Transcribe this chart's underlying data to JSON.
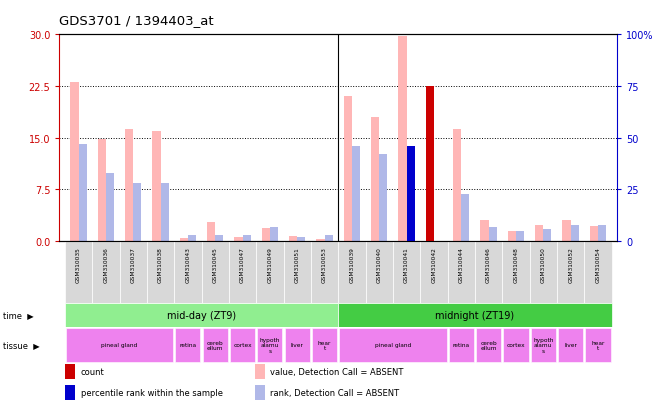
{
  "title": "GDS3701 / 1394403_at",
  "samples": [
    "GSM310035",
    "GSM310036",
    "GSM310037",
    "GSM310038",
    "GSM310043",
    "GSM310045",
    "GSM310047",
    "GSM310049",
    "GSM310051",
    "GSM310053",
    "GSM310039",
    "GSM310040",
    "GSM310041",
    "GSM310042",
    "GSM310044",
    "GSM310046",
    "GSM310048",
    "GSM310050",
    "GSM310052",
    "GSM310054"
  ],
  "value_absent": [
    23.0,
    14.8,
    16.2,
    16.0,
    0.5,
    2.8,
    0.6,
    1.9,
    0.8,
    0.3,
    21.0,
    18.0,
    29.8,
    0.0,
    16.2,
    3.0,
    1.5,
    2.4,
    3.0,
    2.2
  ],
  "rank_absent_pct": [
    47.0,
    33.0,
    28.0,
    28.0,
    3.0,
    3.0,
    3.0,
    7.0,
    2.0,
    3.0,
    46.0,
    42.0,
    0.0,
    0.0,
    23.0,
    7.0,
    5.0,
    6.0,
    8.0,
    8.0
  ],
  "count_value": [
    0,
    0,
    0,
    0,
    0,
    0,
    0,
    0,
    0,
    0,
    0,
    0,
    0,
    22.5,
    0,
    0,
    0,
    0,
    0,
    0
  ],
  "rank_count_pct": [
    0,
    0,
    0,
    0,
    0,
    0,
    0,
    0,
    0,
    0,
    0,
    0,
    46.0,
    0,
    0,
    0,
    0,
    0,
    0,
    0
  ],
  "ylim_left": [
    0,
    30
  ],
  "ylim_right": [
    0,
    100
  ],
  "yticks_left": [
    0,
    7.5,
    15,
    22.5,
    30
  ],
  "yticks_right": [
    0,
    25,
    50,
    75,
    100
  ],
  "bar_width": 0.3,
  "color_value_absent": "#ffb6b6",
  "color_rank_absent": "#b0b8e8",
  "color_count": "#cc0000",
  "color_rank_count": "#0000cc",
  "axis_left_color": "#cc0000",
  "axis_right_color": "#0000cc",
  "time_groups": [
    {
      "label": "mid-day (ZT9)",
      "start": 0,
      "end": 10,
      "color": "#90ee90"
    },
    {
      "label": "midnight (ZT19)",
      "start": 10,
      "end": 20,
      "color": "#44cc44"
    }
  ],
  "tissue_defs": [
    [
      0,
      4,
      "pineal gland"
    ],
    [
      4,
      5,
      "retina"
    ],
    [
      5,
      6,
      "cereb\nellum"
    ],
    [
      6,
      7,
      "cortex"
    ],
    [
      7,
      8,
      "hypoth\nalamu\ns"
    ],
    [
      8,
      9,
      "liver"
    ],
    [
      9,
      10,
      "hear\nt"
    ],
    [
      10,
      14,
      "pineal gland"
    ],
    [
      14,
      15,
      "retina"
    ],
    [
      15,
      16,
      "cereb\nellum"
    ],
    [
      16,
      17,
      "cortex"
    ],
    [
      17,
      18,
      "hypoth\nalamu\ns"
    ],
    [
      18,
      19,
      "liver"
    ],
    [
      19,
      20,
      "hear\nt"
    ]
  ],
  "legend_items": [
    {
      "label": "count",
      "color": "#cc0000"
    },
    {
      "label": "percentile rank within the sample",
      "color": "#0000cc"
    },
    {
      "label": "value, Detection Call = ABSENT",
      "color": "#ffb6b6"
    },
    {
      "label": "rank, Detection Call = ABSENT",
      "color": "#b0b8e8"
    }
  ]
}
